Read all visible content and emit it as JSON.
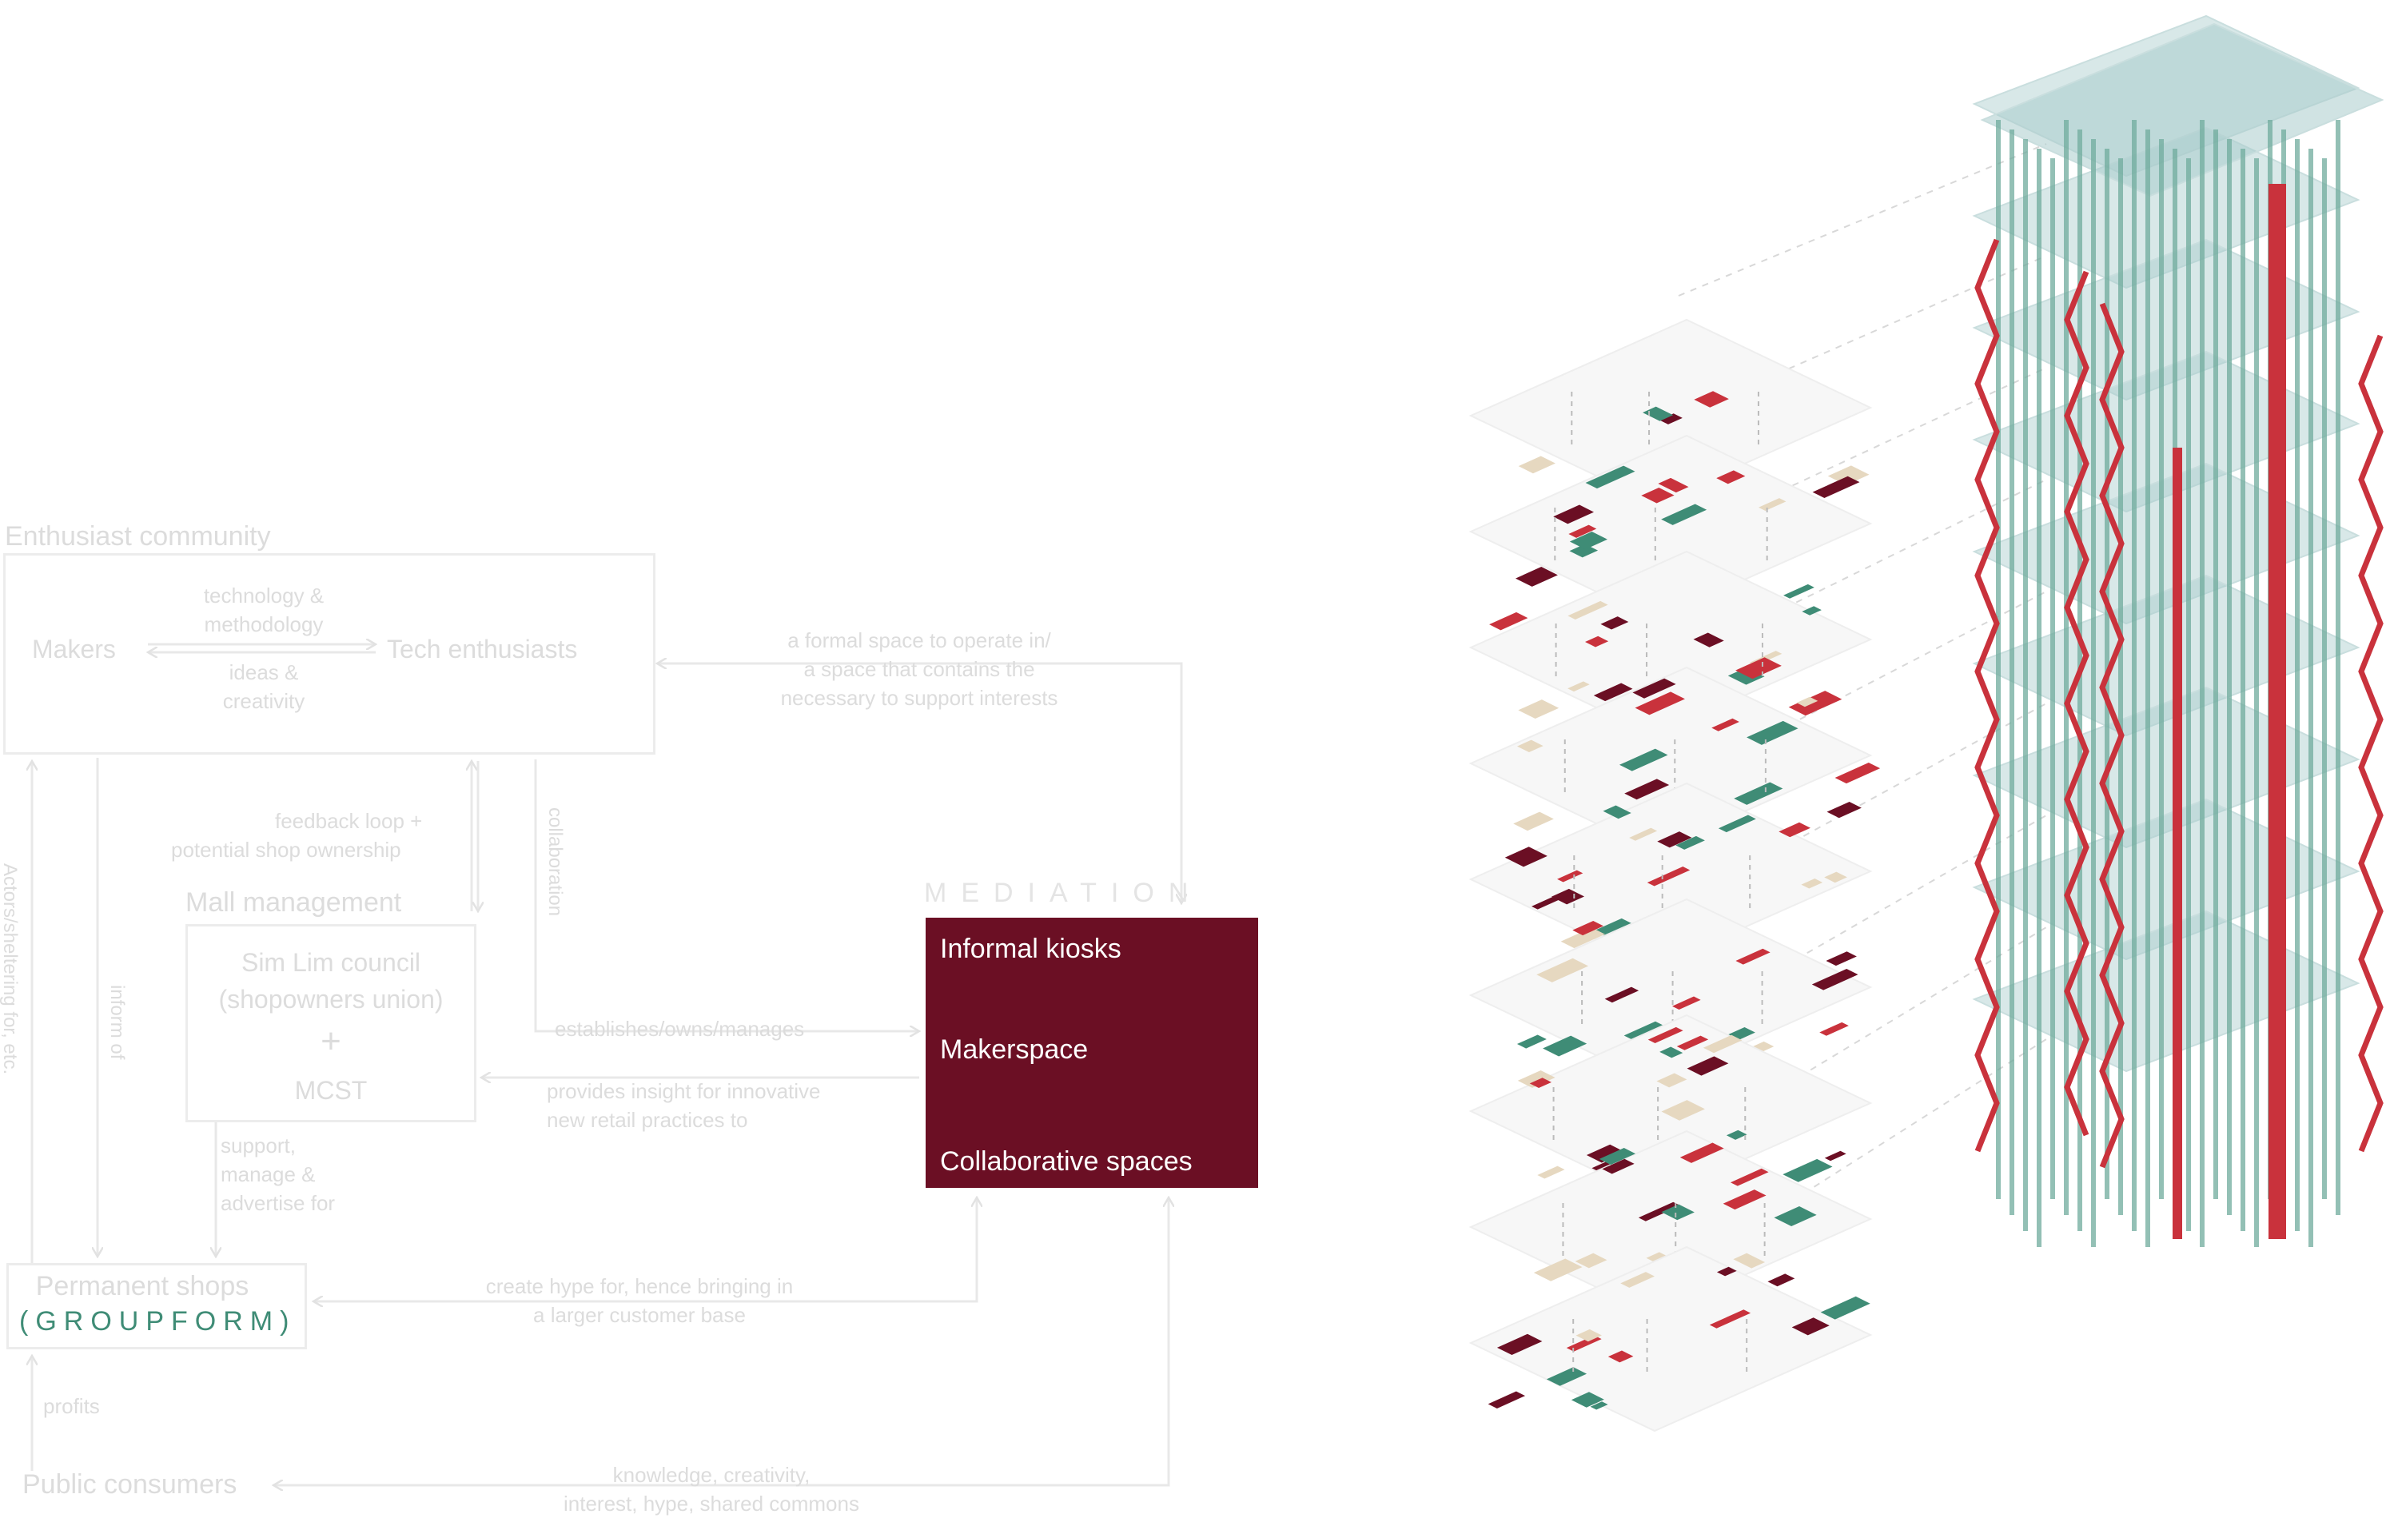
{
  "diagram": {
    "enthusiast_community": {
      "title": "Enthusiast community",
      "makers": "Makers",
      "tech_enthusiasts": "Tech enthusiasts",
      "arrow_top_1": "technology &",
      "arrow_top_2": "methodology",
      "arrow_bottom_1": "ideas &",
      "arrow_bottom_2": "creativity"
    },
    "formal_space": {
      "line1": "a formal space to operate in/",
      "line2": "a space that contains the",
      "line3": "necessary to support interests"
    },
    "feedback": {
      "line1": "feedback loop +",
      "line2": "potential shop ownership"
    },
    "collaboration": "collaboration",
    "mall_management": {
      "title": "Mall management",
      "council_1": "Sim Lim council",
      "council_2": "(shopowners union)",
      "plus": "+",
      "mcst": "MCST"
    },
    "mediation": {
      "title": "MEDIATION",
      "items": [
        "Informal kiosks",
        "Makerspace",
        "Collaborative spaces"
      ]
    },
    "establishes": "establishes/owns/manages",
    "provides": {
      "line1": "provides insight for innovative",
      "line2": "new retail practices to"
    },
    "support": {
      "line1": "support,",
      "line2": "manage &",
      "line3": "advertise for"
    },
    "actors": "Actors/sheltering for, etc.",
    "inform_of": "inform of",
    "permanent_shops": {
      "title": "Permanent shops",
      "groupform": "(GROUPFORM)"
    },
    "hype": {
      "line1": "create hype for, hence bringing in",
      "line2": "a larger customer base"
    },
    "profits": "profits",
    "public_consumers": "Public consumers",
    "knowledge": {
      "line1": "knowledge, creativity,",
      "line2": "interest, hype, shared commons"
    }
  },
  "colors": {
    "maroon": "#6b0f24",
    "teal": "#3f8c76",
    "red": "#c9323c",
    "glass": "#a9cccc",
    "beige": "#e6d8c0",
    "faint": "#dcdcdc"
  }
}
